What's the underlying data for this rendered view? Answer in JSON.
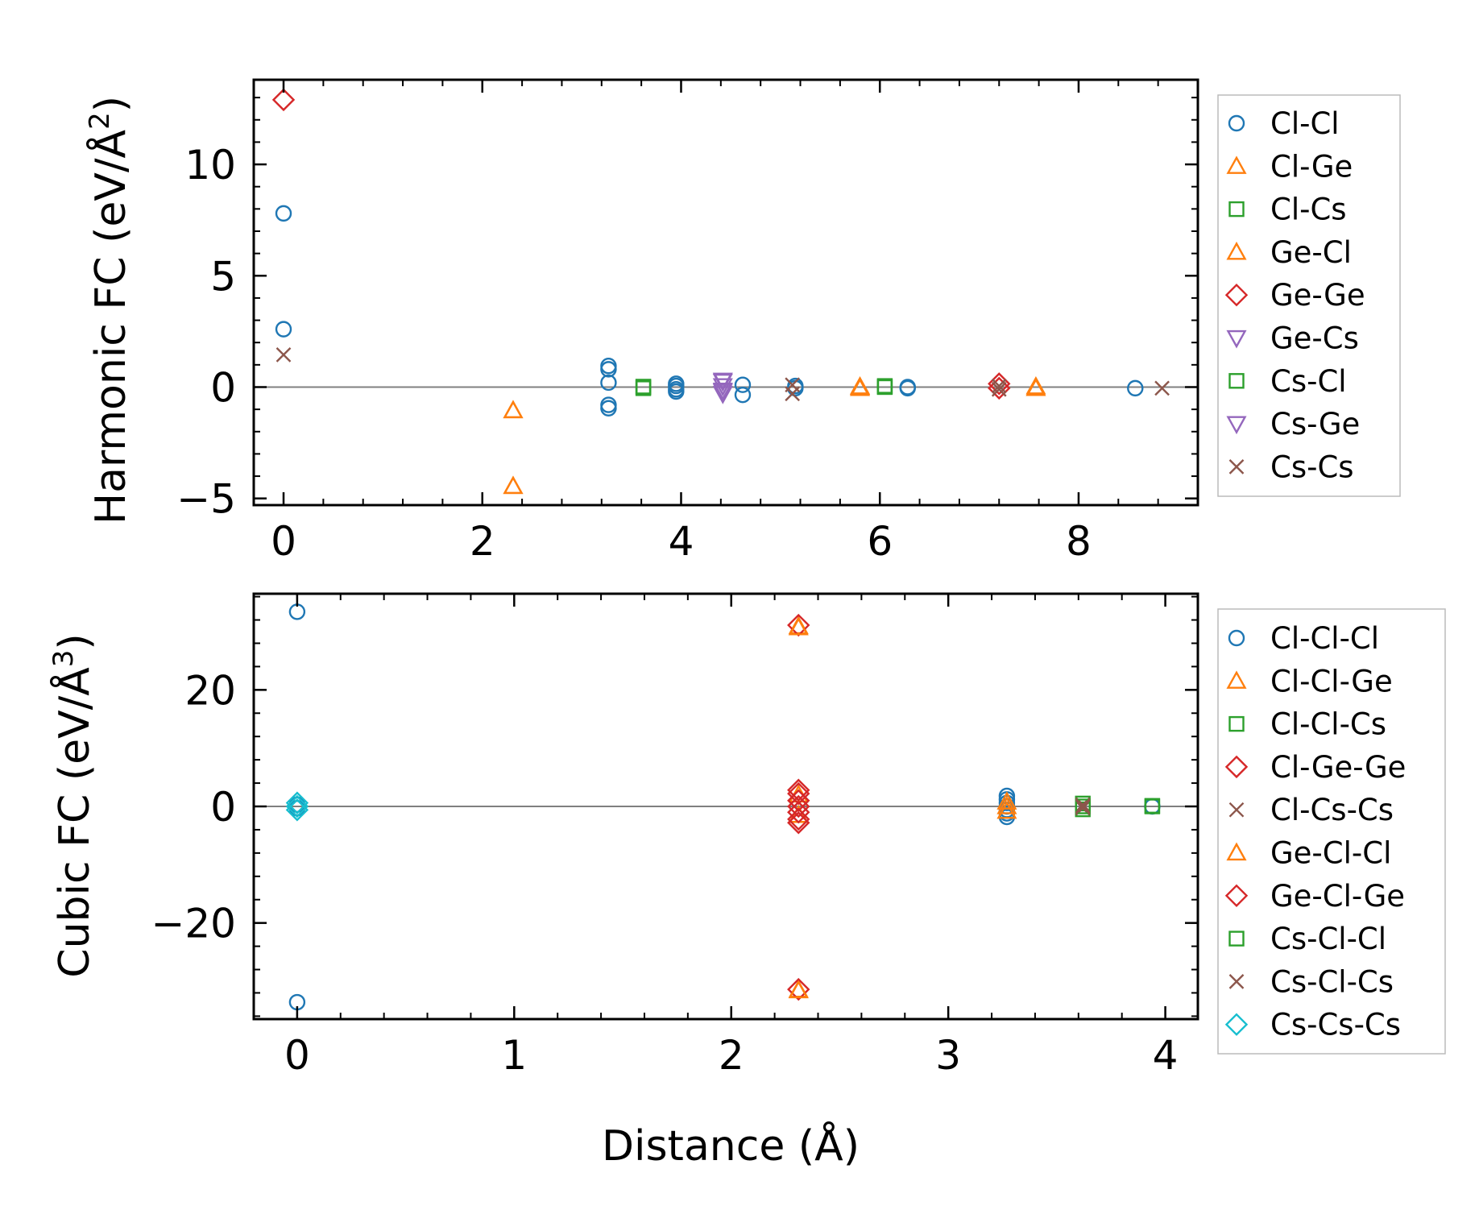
{
  "figure": {
    "xlabel": "Distance (Å)"
  },
  "chart_data": [
    {
      "type": "scatter",
      "ylabel": "Harmonic FC (eV/Å",
      "ylabel_exp": "2",
      "ylabel_close": ")",
      "xlim": [
        -0.3,
        9.2
      ],
      "ylim": [
        -5.3,
        13.8
      ],
      "xticks": [
        0,
        2,
        4,
        6,
        8
      ],
      "xtick_labels": [
        "0",
        "2",
        "4",
        "6",
        "8"
      ],
      "yticks": [
        -5,
        0,
        5,
        10
      ],
      "ytick_labels": [
        "−5",
        "0",
        "5",
        "10"
      ],
      "xminor": 0.4,
      "yminor": 1,
      "zero_line": true,
      "series": [
        {
          "name": "Cl-Cl",
          "marker": "circle",
          "color": "#1f77b4",
          "points": [
            [
              0,
              7.8
            ],
            [
              0,
              2.6
            ],
            [
              3.27,
              0.95
            ],
            [
              3.27,
              0.8
            ],
            [
              3.27,
              0.2
            ],
            [
              3.27,
              -0.8
            ],
            [
              3.27,
              -0.95
            ],
            [
              3.95,
              0.15
            ],
            [
              3.95,
              0.05
            ],
            [
              3.95,
              -0.1
            ],
            [
              3.95,
              -0.2
            ],
            [
              4.62,
              0.1
            ],
            [
              4.62,
              -0.35
            ],
            [
              5.15,
              0.05
            ],
            [
              5.15,
              -0.05
            ],
            [
              6.28,
              0.0
            ],
            [
              6.28,
              -0.05
            ],
            [
              8.57,
              -0.05
            ]
          ]
        },
        {
          "name": "Cl-Ge",
          "marker": "triangle-up",
          "color": "#ff7f0e",
          "points": [
            [
              2.31,
              -1.05
            ],
            [
              2.31,
              -4.45
            ],
            [
              5.8,
              0.02
            ],
            [
              5.8,
              -0.05
            ],
            [
              7.57,
              0.02
            ],
            [
              7.57,
              -0.05
            ]
          ]
        },
        {
          "name": "Cl-Cs",
          "marker": "square",
          "color": "#2ca02c",
          "points": [
            [
              3.62,
              0.02
            ],
            [
              3.62,
              -0.05
            ],
            [
              6.05,
              0.05
            ],
            [
              6.05,
              0.0
            ]
          ]
        },
        {
          "name": "Ge-Cl",
          "marker": "triangle-up",
          "color": "#ff7f0e",
          "points": [
            [
              2.31,
              -1.05
            ],
            [
              2.31,
              -4.45
            ],
            [
              5.8,
              0.0
            ]
          ]
        },
        {
          "name": "Ge-Ge",
          "marker": "diamond",
          "color": "#d62728",
          "points": [
            [
              0,
              12.9
            ],
            [
              7.2,
              0.15
            ],
            [
              7.2,
              -0.05
            ]
          ]
        },
        {
          "name": "Ge-Cs",
          "marker": "triangle-down",
          "color": "#9467bd",
          "points": [
            [
              4.42,
              0.3
            ],
            [
              4.42,
              0.05
            ],
            [
              4.42,
              -0.15
            ],
            [
              4.42,
              -0.3
            ]
          ]
        },
        {
          "name": "Cs-Cl",
          "marker": "square",
          "color": "#2ca02c",
          "points": [
            [
              3.62,
              0.0
            ],
            [
              6.05,
              0.02
            ]
          ]
        },
        {
          "name": "Cs-Ge",
          "marker": "triangle-down",
          "color": "#9467bd",
          "points": [
            [
              4.42,
              0.25
            ],
            [
              4.42,
              -0.2
            ]
          ]
        },
        {
          "name": "Cs-Cs",
          "marker": "x",
          "color": "#8c564b",
          "points": [
            [
              0,
              1.45
            ],
            [
              5.12,
              0.1
            ],
            [
              5.12,
              -0.3
            ],
            [
              7.2,
              0.05
            ],
            [
              7.2,
              -0.1
            ],
            [
              8.84,
              -0.05
            ]
          ]
        }
      ]
    },
    {
      "type": "scatter",
      "ylabel": "Cubic FC (eV/Å",
      "ylabel_exp": "3",
      "ylabel_close": ")",
      "xlim": [
        -0.2,
        4.15
      ],
      "ylim": [
        -36.5,
        36.5
      ],
      "xticks": [
        0,
        1,
        2,
        3,
        4
      ],
      "xtick_labels": [
        "0",
        "1",
        "2",
        "3",
        "4"
      ],
      "yticks": [
        -20,
        0,
        20
      ],
      "ytick_labels": [
        "−20",
        "0",
        "20"
      ],
      "xminor": 0.2,
      "yminor": 4,
      "zero_line": true,
      "series": [
        {
          "name": "Cl-Cl-Cl",
          "marker": "circle",
          "color": "#1f77b4",
          "points": [
            [
              0,
              33.4
            ],
            [
              0,
              -33.6
            ],
            [
              0,
              0.3
            ],
            [
              0,
              -0.3
            ],
            [
              3.27,
              1.8
            ],
            [
              3.27,
              1.2
            ],
            [
              3.27,
              0.6
            ],
            [
              3.27,
              0.0
            ],
            [
              3.27,
              -0.6
            ],
            [
              3.27,
              -1.2
            ],
            [
              3.27,
              -1.8
            ],
            [
              3.94,
              0.0
            ]
          ]
        },
        {
          "name": "Cl-Cl-Ge",
          "marker": "triangle-up",
          "color": "#ff7f0e",
          "points": [
            [
              2.31,
              30.9
            ],
            [
              2.31,
              -31.5
            ],
            [
              2.31,
              2.0
            ],
            [
              2.31,
              -1.5
            ],
            [
              3.27,
              0.8
            ],
            [
              3.27,
              -0.8
            ]
          ]
        },
        {
          "name": "Cl-Cl-Cs",
          "marker": "square",
          "color": "#2ca02c",
          "points": [
            [
              3.62,
              0.5
            ],
            [
              3.62,
              -0.5
            ],
            [
              3.94,
              0.0
            ]
          ]
        },
        {
          "name": "Cl-Ge-Ge",
          "marker": "diamond",
          "color": "#d62728",
          "points": [
            [
              2.31,
              31.1
            ],
            [
              2.31,
              -31.4
            ],
            [
              2.31,
              2.8
            ],
            [
              2.31,
              1.0
            ],
            [
              2.31,
              -1.0
            ],
            [
              2.31,
              -2.8
            ]
          ]
        },
        {
          "name": "Cl-Cs-Cs",
          "marker": "x",
          "color": "#8c564b",
          "points": [
            [
              3.62,
              0.3
            ],
            [
              3.62,
              -0.3
            ]
          ]
        },
        {
          "name": "Ge-Cl-Cl",
          "marker": "triangle-up",
          "color": "#ff7f0e",
          "points": [
            [
              2.31,
              30.7
            ],
            [
              2.31,
              -31.6
            ],
            [
              3.27,
              0.0
            ]
          ]
        },
        {
          "name": "Ge-Cl-Ge",
          "marker": "diamond",
          "color": "#d62728",
          "points": [
            [
              2.31,
              2.2
            ],
            [
              2.31,
              -2.2
            ],
            [
              2.31,
              0.0
            ]
          ]
        },
        {
          "name": "Cs-Cl-Cl",
          "marker": "square",
          "color": "#2ca02c",
          "points": [
            [
              3.62,
              0.0
            ],
            [
              3.94,
              0.1
            ]
          ]
        },
        {
          "name": "Cs-Cl-Cs",
          "marker": "x",
          "color": "#8c564b",
          "points": [
            [
              3.62,
              0.1
            ],
            [
              3.62,
              -0.1
            ]
          ]
        },
        {
          "name": "Cs-Cs-Cs",
          "marker": "diamond",
          "color": "#17becf",
          "points": [
            [
              0,
              0.6
            ],
            [
              0,
              0.0
            ],
            [
              0,
              -0.6
            ]
          ]
        }
      ]
    }
  ]
}
